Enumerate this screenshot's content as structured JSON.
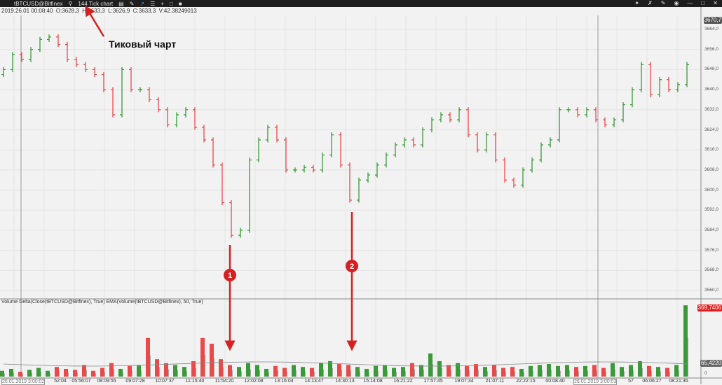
{
  "toolbar": {
    "symbol": "tBTCUSD@Bitfinex",
    "chart_type": "144 Tick chart"
  },
  "ohlc": {
    "date": "2019.26.01 00:08:40",
    "open": "O:3628,3",
    "high": "H:3633,3",
    "low": "L:3626,9",
    "close": "C:3633,3",
    "volume": "V:42.38249013"
  },
  "annotation": "Тиковый чарт",
  "markers": [
    "1",
    "2"
  ],
  "indicator_label": "Volume Delta(Close(tBTCUSD@Bitfinex), True) EMA(Volume(tBTCUSD@Bitfinex), 50, True)",
  "price_axis": [
    "3664,0",
    "3656,0",
    "3648,0",
    "3640,0",
    "3632,0",
    "3624,0",
    "3616,0",
    "3608,0",
    "3600,0",
    "3592,0",
    "3584,0",
    "3576,0",
    "3568,0",
    "3560,0"
  ],
  "last_price": "3670,7",
  "volume_axis": {
    "top": "369,7406",
    "ema": "65,4220",
    "zero": "0"
  },
  "time_axis": [
    "52:04",
    "05:56:07",
    "08:09:55",
    "09:07:28",
    "10:07:37",
    "11:15:40",
    "11:54:20",
    "12:02:08",
    "13:16:04",
    "14:13:47",
    "14:30:13",
    "15:14:08",
    "16:21:22",
    "17:57:45",
    "19:07:34",
    "21:07:11",
    "22:22:15",
    "00:08:40",
    "57",
    "06:06:27",
    "08:21:36"
  ],
  "crosshair_dates": [
    "26.01.2019 3:00:02",
    "26.01.2019 3:00:03"
  ],
  "colors": {
    "up": "#3a9a3a",
    "down": "#e84a4a",
    "neutral": "#aaaaaa",
    "arrow": "#d42020"
  },
  "chart_data": {
    "type": "candlestick",
    "ylim": [
      3556,
      3668
    ],
    "closes": [
      3648,
      3654,
      3652,
      3656,
      3660,
      3661,
      3658,
      3652,
      3650,
      3648,
      3646,
      3640,
      3630,
      3648,
      3640,
      3640,
      3636,
      3632,
      3626,
      3630,
      3632,
      3625,
      3620,
      3610,
      3595,
      3582,
      3584,
      3612,
      3620,
      3625,
      3620,
      3608,
      3608,
      3609,
      3608,
      3614,
      3622,
      3610,
      3596,
      3604,
      3606,
      3610,
      3614,
      3618,
      3620,
      3618,
      3624,
      3628,
      3630,
      3628,
      3632,
      3622,
      3616,
      3622,
      3612,
      3604,
      3602,
      3608,
      3612,
      3618,
      3620,
      3632,
      3632,
      3630,
      3632,
      3628,
      3626,
      3628,
      3634,
      3640,
      3650,
      3638,
      3644,
      3640,
      3642,
      3650
    ],
    "volumes": [
      30,
      40,
      25,
      35,
      45,
      30,
      50,
      40,
      35,
      60,
      30,
      45,
      70,
      40,
      55,
      60,
      200,
      90,
      70,
      60,
      50,
      80,
      200,
      170,
      90,
      60,
      50,
      70,
      60,
      40,
      55,
      45,
      60,
      50,
      45,
      70,
      80,
      65,
      60,
      50,
      40,
      55,
      60,
      45,
      50,
      70,
      60,
      120,
      80,
      60,
      70,
      55,
      65,
      50,
      60,
      45,
      50,
      40,
      55,
      60,
      65,
      55,
      60,
      50,
      55,
      60,
      45,
      70,
      50,
      60,
      80,
      55,
      50,
      45,
      60,
      369
    ]
  }
}
